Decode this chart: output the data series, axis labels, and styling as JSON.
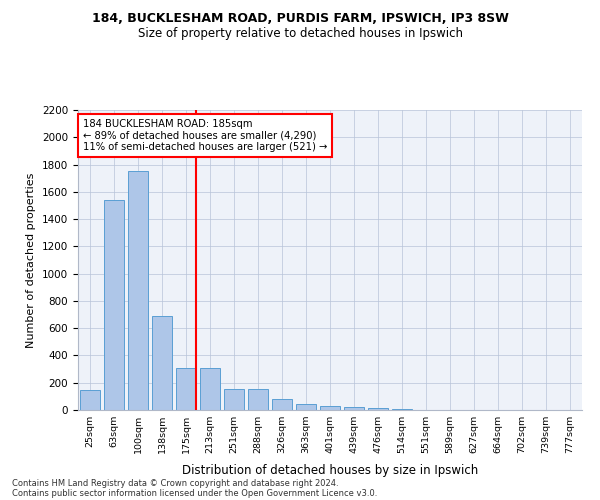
{
  "title1": "184, BUCKLESHAM ROAD, PURDIS FARM, IPSWICH, IP3 8SW",
  "title2": "Size of property relative to detached houses in Ipswich",
  "xlabel": "Distribution of detached houses by size in Ipswich",
  "ylabel": "Number of detached properties",
  "categories": [
    "25sqm",
    "63sqm",
    "100sqm",
    "138sqm",
    "175sqm",
    "213sqm",
    "251sqm",
    "288sqm",
    "326sqm",
    "363sqm",
    "401sqm",
    "439sqm",
    "476sqm",
    "514sqm",
    "551sqm",
    "589sqm",
    "627sqm",
    "664sqm",
    "702sqm",
    "739sqm",
    "777sqm"
  ],
  "values": [
    150,
    1540,
    1750,
    690,
    310,
    310,
    155,
    155,
    80,
    45,
    30,
    20,
    15,
    5,
    0,
    0,
    0,
    0,
    0,
    0,
    0
  ],
  "bar_color": "#aec6e8",
  "bar_edge_color": "#5a9fd4",
  "vline_color": "red",
  "annotation_text": "184 BUCKLESHAM ROAD: 185sqm\n← 89% of detached houses are smaller (4,290)\n11% of semi-detached houses are larger (521) →",
  "ylim": [
    0,
    2200
  ],
  "yticks": [
    0,
    200,
    400,
    600,
    800,
    1000,
    1200,
    1400,
    1600,
    1800,
    2000,
    2200
  ],
  "footnote1": "Contains HM Land Registry data © Crown copyright and database right 2024.",
  "footnote2": "Contains public sector information licensed under the Open Government Licence v3.0.",
  "bg_color": "#eef2f9"
}
